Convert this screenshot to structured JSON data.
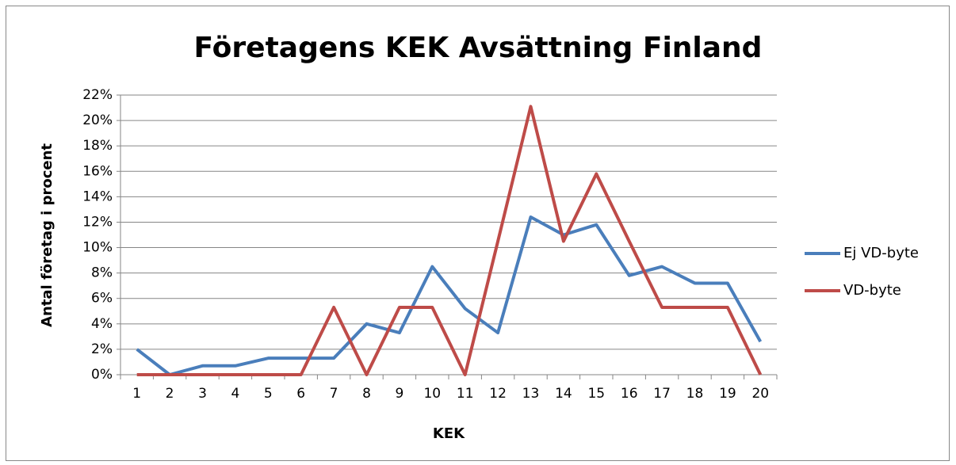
{
  "chart_data": {
    "type": "line",
    "title": "Företagens KEK Avsättning Finland",
    "x_label": "KEK",
    "y_label": "Antal företag i procent",
    "categories": [
      "1",
      "2",
      "3",
      "4",
      "5",
      "6",
      "7",
      "8",
      "9",
      "10",
      "11",
      "12",
      "13",
      "14",
      "15",
      "16",
      "17",
      "18",
      "19",
      "20"
    ],
    "series": [
      {
        "name": "Ej VD-byte",
        "color": "#4a7ebb",
        "values": [
          2.0,
          0,
          0.7,
          0.7,
          1.3,
          1.3,
          1.3,
          4.0,
          3.3,
          8.5,
          5.2,
          3.3,
          12.4,
          11.0,
          11.8,
          7.8,
          8.5,
          7.2,
          7.2,
          2.6
        ]
      },
      {
        "name": "VD-byte",
        "color": "#be4b48",
        "values": [
          0,
          0,
          0,
          0,
          0,
          0,
          5.3,
          0,
          5.3,
          5.3,
          0,
          10.5,
          21.1,
          10.5,
          15.8,
          10.5,
          5.3,
          5.3,
          5.3,
          0
        ]
      }
    ],
    "ylim": [
      0,
      22
    ],
    "yticks": [
      {
        "value": 0,
        "label": "0%"
      },
      {
        "value": 2,
        "label": "2%"
      },
      {
        "value": 4,
        "label": "4%"
      },
      {
        "value": 6,
        "label": "6%"
      },
      {
        "value": 8,
        "label": "8%"
      },
      {
        "value": 10,
        "label": "10%"
      },
      {
        "value": 12,
        "label": "12%"
      },
      {
        "value": 14,
        "label": "14%"
      },
      {
        "value": 16,
        "label": "16%"
      },
      {
        "value": 18,
        "label": "18%"
      },
      {
        "value": 20,
        "label": "20%"
      },
      {
        "value": 22,
        "label": "22%"
      }
    ],
    "grid": true,
    "legend": "right"
  }
}
